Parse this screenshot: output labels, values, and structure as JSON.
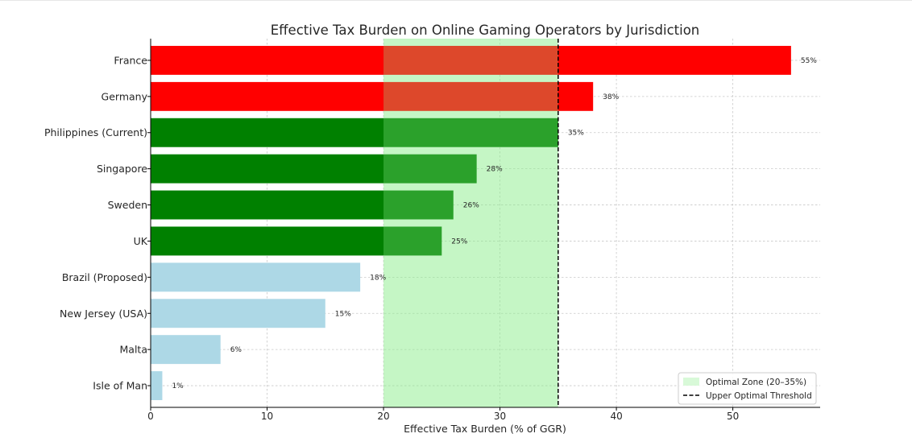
{
  "chart_data": {
    "type": "bar",
    "orientation": "horizontal",
    "title": "Effective Tax Burden on Online Gaming Operators by Jurisdiction",
    "xlabel": "Effective Tax Burden (% of GGR)",
    "ylabel": "",
    "xlim": [
      0,
      57.5
    ],
    "xticks": [
      0,
      10,
      20,
      30,
      40,
      50
    ],
    "grid": true,
    "legend_position": "lower-right",
    "categories": [
      "France",
      "Germany",
      "Philippines (Current)",
      "Singapore",
      "Sweden",
      "UK",
      "Brazil (Proposed)",
      "New Jersey (USA)",
      "Malta",
      "Isle of Man"
    ],
    "values": [
      55,
      38,
      35,
      28,
      26,
      25,
      18,
      15,
      6,
      1
    ],
    "data_labels": [
      "55%",
      "38%",
      "35%",
      "28%",
      "26%",
      "25%",
      "18%",
      "15%",
      "6%",
      "1%"
    ],
    "bar_colors": [
      "#ff0000",
      "#ff0000",
      "#008000",
      "#008000",
      "#008000",
      "#008000",
      "#add8e6",
      "#add8e6",
      "#add8e6",
      "#add8e6"
    ],
    "optimal_zone": {
      "range": [
        20,
        35
      ],
      "color": "#90ee90",
      "label": "Optimal Zone (20–35%)"
    },
    "threshold": {
      "value": 35,
      "color": "#000000",
      "style": "dashed",
      "label": "Upper Optimal Threshold"
    }
  }
}
